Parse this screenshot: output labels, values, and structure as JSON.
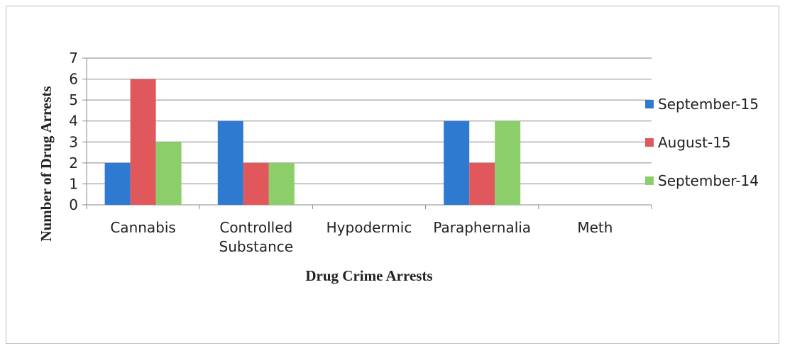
{
  "chart_data": {
    "type": "bar",
    "xlabel": "Drug Crime Arrests",
    "ylabel": "Number of Drug Arrests",
    "ylim": [
      0,
      7
    ],
    "yticks": [
      0,
      1,
      2,
      3,
      4,
      5,
      6,
      7
    ],
    "grid": true,
    "legend_position": "right",
    "categories": [
      [
        "Cannabis"
      ],
      [
        "Controlled",
        "Substance"
      ],
      [
        "Hypodermic"
      ],
      [
        "Paraphernalia"
      ],
      [
        "Meth"
      ]
    ],
    "series": [
      {
        "name": "September-15",
        "color": "#2e7ad1",
        "values": [
          2,
          4,
          0,
          4,
          0
        ]
      },
      {
        "name": "August-15",
        "color": "#e0585c",
        "values": [
          6,
          2,
          0,
          2,
          0
        ]
      },
      {
        "name": "September-14",
        "color": "#8ccf6a",
        "values": [
          3,
          2,
          0,
          4,
          0
        ]
      }
    ]
  }
}
